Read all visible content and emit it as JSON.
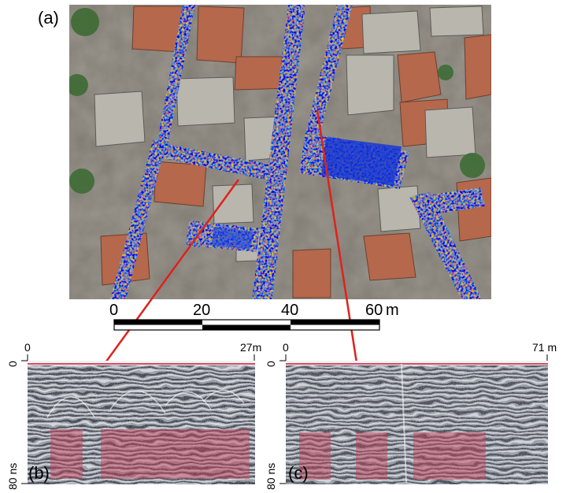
{
  "panels": {
    "a": {
      "label": "(a)"
    },
    "b": {
      "label": "(b)",
      "x_start": "0",
      "x_end": "27m",
      "t_start": "0",
      "t_end": "80 ns"
    },
    "c": {
      "label": "(c)",
      "x_start": "0",
      "x_end": "71 m",
      "t_start": "0",
      "t_end": "80 ns"
    }
  },
  "scalebar": {
    "ticks": [
      "0",
      "20",
      "40",
      "60"
    ],
    "unit": "m"
  },
  "colors": {
    "highlight": "#c2405a",
    "connector": "#e0211b",
    "roof": "#b5684c",
    "pavement": "#8d8a84",
    "scan_high": "#c62a2a",
    "scan_low": "#1032d6"
  }
}
